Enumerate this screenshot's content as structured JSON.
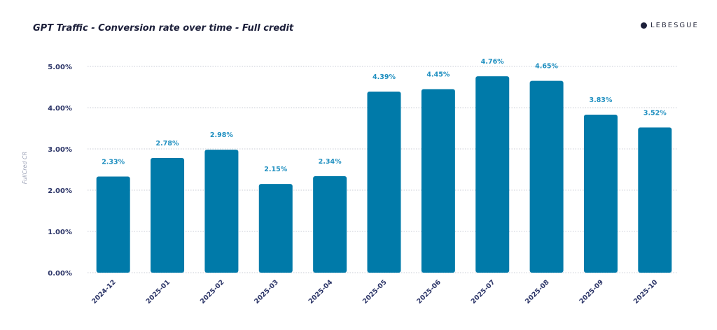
{
  "title": "GPT Traffic - Conversion rate over time - Full credit",
  "logo": "LEBESGUE",
  "colors": {
    "bar": "#007aa9",
    "label": "#1f8fc0",
    "axis_text": "#2b3467"
  },
  "chart_data": {
    "type": "bar",
    "title": "GPT Traffic - Conversion rate over time - Full credit",
    "xlabel": "",
    "ylabel": "FullCred CR",
    "ylim": [
      0,
      5
    ],
    "yticks": [
      "0.00%",
      "1.00%",
      "2.00%",
      "3.00%",
      "4.00%",
      "5.00%"
    ],
    "grid": true,
    "categories": [
      "2024-12",
      "2025-01",
      "2025-02",
      "2025-03",
      "2025-04",
      "2025-05",
      "2025-06",
      "2025-07",
      "2025-08",
      "2025-09",
      "2025-10"
    ],
    "values": [
      2.33,
      2.78,
      2.98,
      2.15,
      2.34,
      4.39,
      4.45,
      4.76,
      4.65,
      3.83,
      3.52
    ],
    "data_labels": [
      "2.33%",
      "2.78%",
      "2.98%",
      "2.15%",
      "2.34%",
      "4.39%",
      "4.45%",
      "4.76%",
      "4.65%",
      "3.83%",
      "3.52%"
    ]
  }
}
